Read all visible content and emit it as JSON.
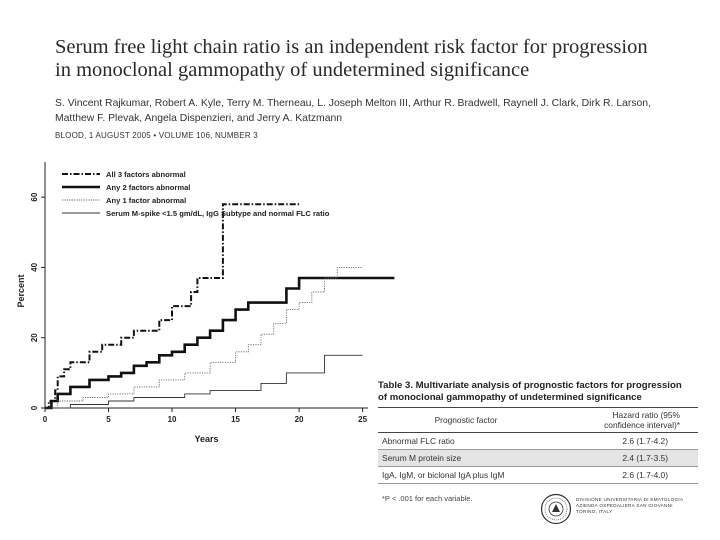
{
  "title_lines": [
    "Serum free light chain ratio is an independent risk factor for progression",
    "in monoclonal gammopathy of undetermined significance"
  ],
  "authors_lines": [
    "S. Vincent Rajkumar, Robert A. Kyle, Terry M. Therneau, L. Joseph Melton III, Arthur R. Bradwell, Raynell J. Clark, Dirk R. Larson,",
    "Matthew F. Plevak, Angela Dispenzieri, and Jerry A. Katzmann"
  ],
  "citation": "BLOOD, 1 AUGUST 2005 • VOLUME 106, NUMBER 3",
  "chart_data": {
    "type": "line",
    "xlabel": "Years",
    "ylabel": "Percent",
    "xlim": [
      0,
      27
    ],
    "ylim": [
      0,
      70
    ],
    "x_ticks": [
      0,
      5,
      10,
      15,
      20,
      25
    ],
    "y_ticks": [
      0,
      20,
      40,
      60
    ],
    "legend_position": "top-left",
    "series": [
      {
        "name": "All 3 factors abnormal",
        "style": "dashdot",
        "points": [
          [
            0,
            0
          ],
          [
            0.3,
            2
          ],
          [
            0.8,
            5
          ],
          [
            1,
            9
          ],
          [
            1.5,
            11
          ],
          [
            2,
            13
          ],
          [
            3.5,
            16
          ],
          [
            4.5,
            18
          ],
          [
            6,
            20
          ],
          [
            7,
            22
          ],
          [
            9,
            25
          ],
          [
            10,
            29
          ],
          [
            11.5,
            33
          ],
          [
            12,
            37
          ],
          [
            13.5,
            37
          ],
          [
            14,
            58
          ],
          [
            20,
            58
          ]
        ]
      },
      {
        "name": "Any 2 factors abnormal",
        "style": "thick",
        "points": [
          [
            0,
            0
          ],
          [
            0.5,
            2
          ],
          [
            1,
            4
          ],
          [
            2,
            6
          ],
          [
            3.5,
            8
          ],
          [
            5,
            9
          ],
          [
            6,
            10
          ],
          [
            7,
            12
          ],
          [
            8,
            13
          ],
          [
            9,
            15
          ],
          [
            10,
            16
          ],
          [
            11,
            18
          ],
          [
            12,
            20
          ],
          [
            13,
            22
          ],
          [
            14,
            25
          ],
          [
            15,
            28
          ],
          [
            16,
            30
          ],
          [
            18,
            30
          ],
          [
            19,
            34
          ],
          [
            20,
            37
          ],
          [
            27.5,
            37
          ]
        ]
      },
      {
        "name": "Any 1 factor abnormal",
        "style": "dotted",
        "points": [
          [
            0,
            0
          ],
          [
            1,
            2
          ],
          [
            3,
            3
          ],
          [
            5,
            4
          ],
          [
            7,
            6
          ],
          [
            9,
            8
          ],
          [
            11,
            10
          ],
          [
            13,
            13
          ],
          [
            15,
            16
          ],
          [
            16,
            18
          ],
          [
            17,
            21
          ],
          [
            18,
            24
          ],
          [
            19,
            28
          ],
          [
            20,
            30
          ],
          [
            21,
            33
          ],
          [
            22,
            37
          ],
          [
            23,
            40
          ],
          [
            25,
            40
          ]
        ]
      },
      {
        "name": "Serum M-spike <1.5 gm/dL, IgG Subtype and normal FLC ratio",
        "style": "thin",
        "points": [
          [
            0,
            0
          ],
          [
            2,
            1
          ],
          [
            5,
            2
          ],
          [
            7,
            3
          ],
          [
            10,
            3
          ],
          [
            11,
            4
          ],
          [
            13,
            5
          ],
          [
            16,
            5
          ],
          [
            17,
            7
          ],
          [
            19,
            10
          ],
          [
            21,
            10
          ],
          [
            22,
            15
          ],
          [
            25,
            15
          ]
        ]
      }
    ]
  },
  "table3": {
    "title_lines": [
      "Table 3. Multivariate analysis of prognostic factors for progression",
      "of monoclonal gammopathy of undetermined significance"
    ],
    "col_factor": "Prognostic factor",
    "col_hr_line1": "Hazard ratio (95%",
    "col_hr_line2": "confidence interval)*",
    "rows": [
      {
        "factor": "Abnormal FLC ratio",
        "hr": "2.6 (1.7-4.2)"
      },
      {
        "factor": "Serum M protein size",
        "hr": "2.4 (1.7-3.5)"
      },
      {
        "factor": "IgA, IgM, or biclonal IgA plus IgM",
        "hr": "2.6 (1.7-4.0)"
      }
    ],
    "footnote": "*P < .001 for each variable."
  },
  "institution_lines": [
    "DIVISIONE UNIVERSITARIA DI EMATOLOGIA",
    "AZIENDA OSPEDALIERA SAN GIOVANNI",
    "TORINO, ITALY"
  ]
}
